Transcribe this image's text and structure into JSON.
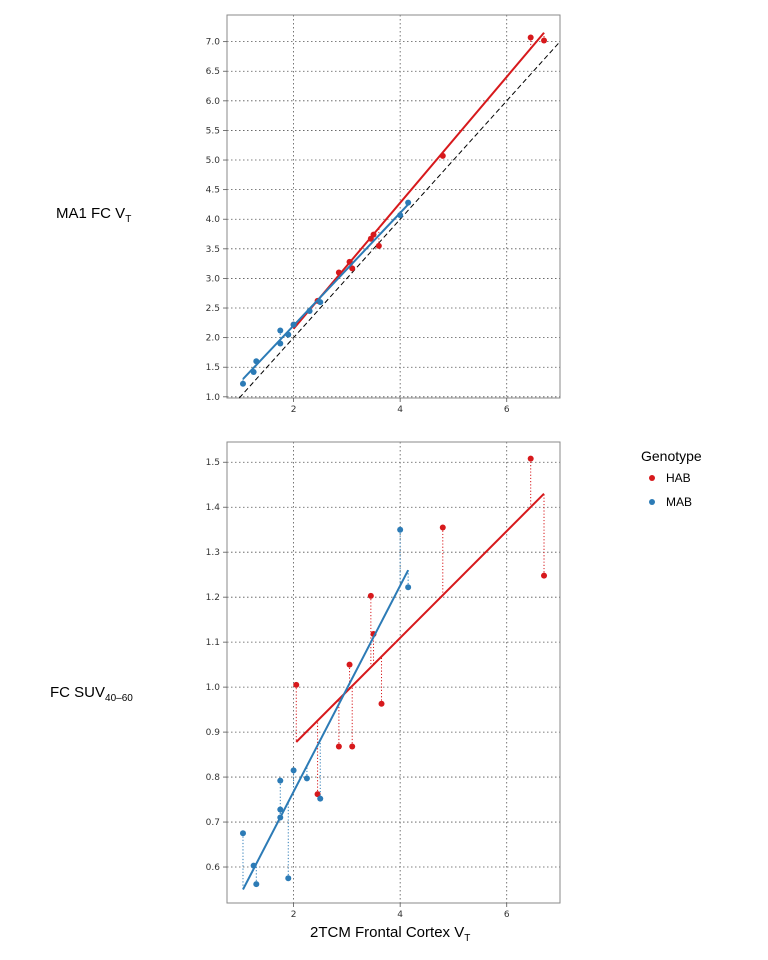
{
  "legend": {
    "title": "Genotype",
    "entries": [
      {
        "label": "HAB",
        "color": "#d7191c"
      },
      {
        "label": "MAB",
        "color": "#2c7bb6"
      }
    ]
  },
  "xlabel": {
    "main": "2TCM Frontal Cortex V",
    "sub": "T"
  },
  "chart_data": [
    {
      "type": "scatter",
      "ylabel": {
        "main": "MA1 FC V",
        "sub": "T"
      },
      "xlim": [
        0.75,
        7.0
      ],
      "ylim": [
        0.98,
        7.45
      ],
      "x_ticks": [
        2,
        4,
        6
      ],
      "y_ticks": [
        1.0,
        1.5,
        2.0,
        2.5,
        3.0,
        3.5,
        4.0,
        4.5,
        5.0,
        5.5,
        6.0,
        6.5,
        7.0
      ],
      "y_tick_labels": [
        "1.0",
        "1.5",
        "2.0",
        "2.5",
        "3.0",
        "3.5",
        "4.0",
        "4.5",
        "5.0",
        "5.5",
        "6.0",
        "6.5",
        "7.0"
      ],
      "identity_line": true,
      "grid": true,
      "series": [
        {
          "name": "HAB",
          "color": "#d7191c",
          "points": [
            [
              2.0,
              2.22
            ],
            [
              2.45,
              2.62
            ],
            [
              2.85,
              3.1
            ],
            [
              3.1,
              3.17
            ],
            [
              3.05,
              3.28
            ],
            [
              3.45,
              3.67
            ],
            [
              3.5,
              3.74
            ],
            [
              3.6,
              3.55
            ],
            [
              4.8,
              5.07
            ],
            [
              6.45,
              7.07
            ],
            [
              6.7,
              7.02
            ]
          ],
          "fit": [
            [
              2.0,
              2.15
            ],
            [
              6.7,
              7.15
            ]
          ]
        },
        {
          "name": "MAB",
          "color": "#2c7bb6",
          "points": [
            [
              1.05,
              1.22
            ],
            [
              1.25,
              1.42
            ],
            [
              1.3,
              1.6
            ],
            [
              1.75,
              1.9
            ],
            [
              1.75,
              2.12
            ],
            [
              1.9,
              2.05
            ],
            [
              2.0,
              2.22
            ],
            [
              2.3,
              2.45
            ],
            [
              2.5,
              2.6
            ],
            [
              4.0,
              4.07
            ],
            [
              4.15,
              4.28
            ]
          ],
          "fit": [
            [
              1.05,
              1.3
            ],
            [
              4.15,
              4.25
            ]
          ]
        }
      ]
    },
    {
      "type": "scatter",
      "ylabel": {
        "main": "FC SUV",
        "sub": "40–60"
      },
      "xlim": [
        0.75,
        7.0
      ],
      "ylim": [
        0.52,
        1.545
      ],
      "x_ticks": [
        2,
        4,
        6
      ],
      "y_ticks": [
        0.6,
        0.7,
        0.8,
        0.9,
        1.0,
        1.1,
        1.2,
        1.3,
        1.4,
        1.5
      ],
      "y_tick_labels": [
        "0.6",
        "0.7",
        "0.8",
        "0.9",
        "1.0",
        "1.1",
        "1.2",
        "1.3",
        "1.4",
        "1.5"
      ],
      "identity_line": false,
      "grid": true,
      "series": [
        {
          "name": "HAB",
          "color": "#d7191c",
          "points": [
            [
              2.05,
              1.005
            ],
            [
              2.45,
              0.762
            ],
            [
              2.85,
              0.868
            ],
            [
              3.1,
              0.868
            ],
            [
              3.05,
              1.05
            ],
            [
              3.45,
              1.203
            ],
            [
              3.5,
              1.118
            ],
            [
              3.65,
              0.963
            ],
            [
              4.8,
              1.355
            ],
            [
              6.45,
              1.508
            ],
            [
              6.7,
              1.248
            ]
          ],
          "fit": [
            [
              2.05,
              0.878
            ],
            [
              6.7,
              1.43
            ]
          ]
        },
        {
          "name": "MAB",
          "color": "#2c7bb6",
          "points": [
            [
              1.05,
              0.675
            ],
            [
              1.25,
              0.603
            ],
            [
              1.3,
              0.562
            ],
            [
              1.75,
              0.71
            ],
            [
              1.75,
              0.728
            ],
            [
              1.75,
              0.792
            ],
            [
              1.9,
              0.575
            ],
            [
              2.0,
              0.815
            ],
            [
              2.25,
              0.797
            ],
            [
              2.5,
              0.752
            ],
            [
              4.0,
              1.35
            ],
            [
              4.15,
              1.222
            ]
          ],
          "fit": [
            [
              1.05,
              0.55
            ],
            [
              4.15,
              1.26
            ]
          ]
        }
      ]
    }
  ]
}
